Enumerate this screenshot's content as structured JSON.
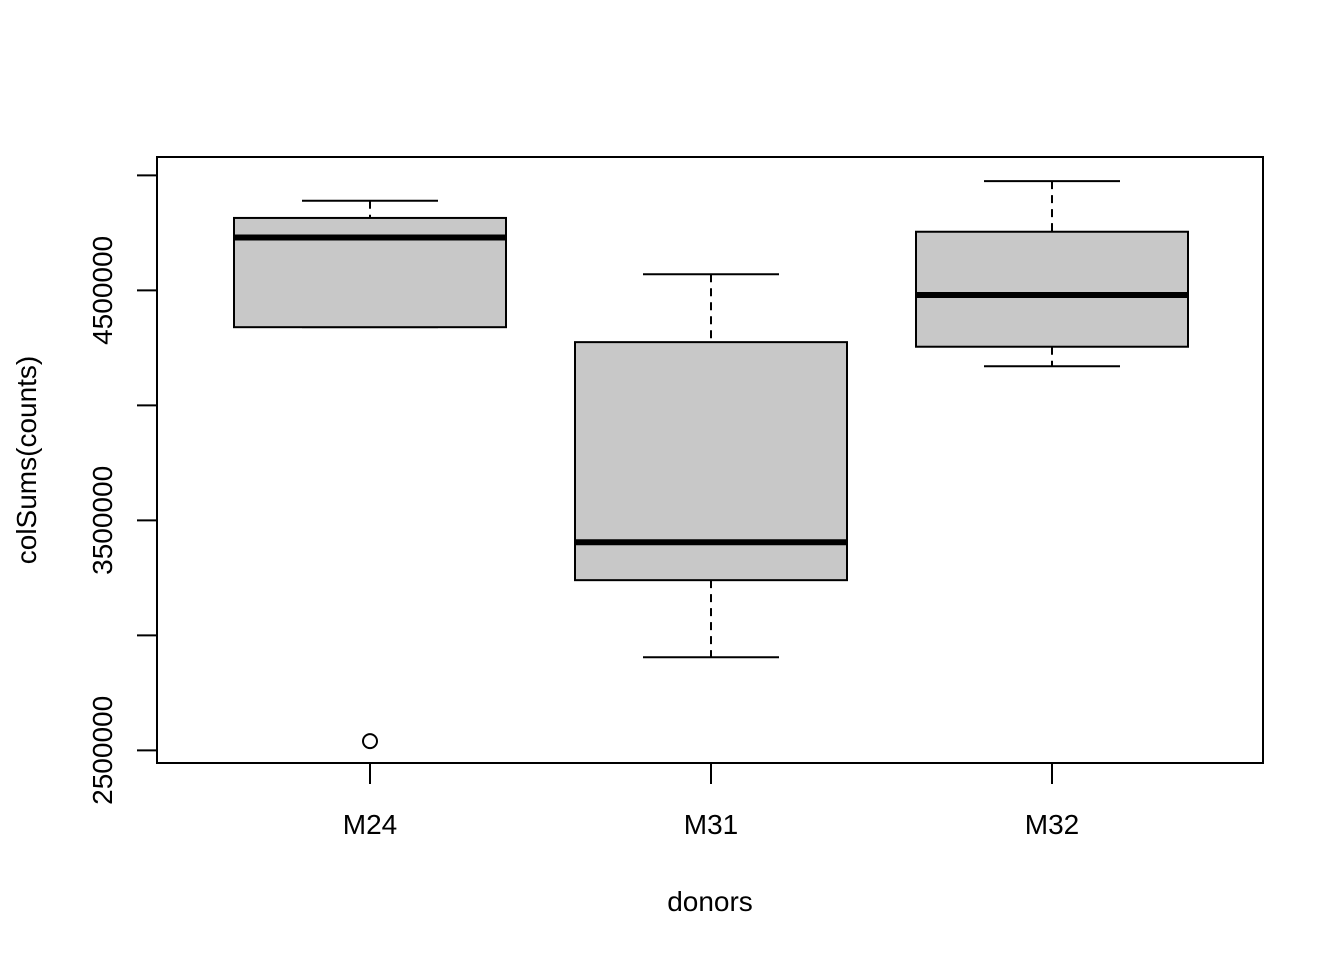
{
  "chart_data": {
    "type": "boxplot",
    "title": "",
    "xlabel": "donors",
    "ylabel": "colSums(counts)",
    "ylim": [
      2445000,
      5080000
    ],
    "y_ticks": [
      2500000,
      3000000,
      3500000,
      4000000,
      4500000,
      5000000
    ],
    "y_tick_labels": [
      "2500000",
      "",
      "3500000",
      "",
      "4500000",
      ""
    ],
    "categories": [
      "M24",
      "M31",
      "M32"
    ],
    "boxes": [
      {
        "name": "M24",
        "min": 4340000,
        "q1": 4340000,
        "median": 4730000,
        "q3": 4815000,
        "max": 4890000,
        "outliers": [
          2540000
        ]
      },
      {
        "name": "M31",
        "min": 2905000,
        "q1": 3240000,
        "median": 3405000,
        "q3": 4275000,
        "max": 4570000,
        "outliers": []
      },
      {
        "name": "M32",
        "min": 4170000,
        "q1": 4255000,
        "median": 4480000,
        "q3": 4755000,
        "max": 4975000,
        "outliers": []
      }
    ],
    "box_fill": "#c8c8c8",
    "grid": false,
    "legend": "none"
  }
}
